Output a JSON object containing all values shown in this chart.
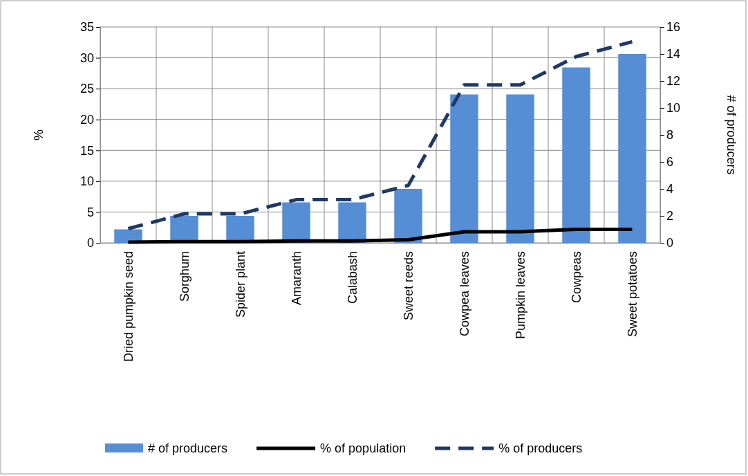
{
  "chart_data": {
    "type": "bar",
    "ylabel": "%",
    "y2label": "# of producers",
    "categories": [
      "Dried pumpkin seed",
      "Sorghum",
      "Spider plant",
      "Amaranth",
      "Calabash",
      "Sweet reeds",
      "Cowpea leaves",
      "Pumpkin leaves",
      "Cowpeas",
      "Sweet potatoes"
    ],
    "series": [
      {
        "name": "# of producers",
        "axis": "y2",
        "color": "#558ed5",
        "values": [
          1,
          2,
          2,
          3,
          3,
          4,
          11,
          11,
          13,
          14
        ]
      },
      {
        "name": "% of population",
        "type": "line",
        "color": "#000000",
        "line_style": "solid",
        "values": [
          0.1,
          0.2,
          0.2,
          0.3,
          0.3,
          0.5,
          1.8,
          1.8,
          2.2,
          2.2
        ]
      },
      {
        "name": "% of producers",
        "type": "line",
        "color": "#1f3864",
        "line_style": "dashed",
        "values": [
          2.3,
          4.7,
          4.7,
          7.0,
          7.0,
          9.3,
          25.6,
          25.6,
          30.2,
          32.6
        ]
      }
    ],
    "ylim": [
      0,
      35
    ],
    "yticks": [
      0,
      5,
      10,
      15,
      20,
      25,
      30,
      35
    ],
    "y2lim": [
      0,
      16
    ],
    "y2ticks": [
      0,
      2,
      4,
      6,
      8,
      10,
      12,
      14,
      16
    ],
    "grid": true,
    "legend": "bottom",
    "marker": "none"
  }
}
